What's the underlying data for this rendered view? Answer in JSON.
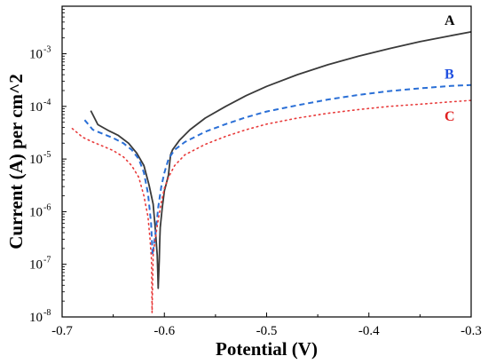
{
  "chart_data": {
    "type": "line",
    "title": "",
    "xlabel": "Potential (V)",
    "ylabel": "Current (A) per cm^2",
    "xlim": [
      -0.7,
      -0.3
    ],
    "ylim": [
      1e-08,
      0.008
    ],
    "yscale": "log",
    "grid": false,
    "x_ticks": [
      "-0.7",
      "-0.6",
      "-0.5",
      "-0.4",
      "-0.3"
    ],
    "y_ticks": [
      {
        "value": 1e-08,
        "base": "10",
        "exp": "-8"
      },
      {
        "value": 1e-07,
        "base": "10",
        "exp": "-7"
      },
      {
        "value": 1e-06,
        "base": "10",
        "exp": "-6"
      },
      {
        "value": 1e-05,
        "base": "10",
        "exp": "-5"
      },
      {
        "value": 0.0001,
        "base": "10",
        "exp": "-4"
      },
      {
        "value": 0.001,
        "base": "10",
        "exp": "-3"
      }
    ],
    "series": [
      {
        "name": "A",
        "color": "#3a3a3a",
        "dash": "solid",
        "label_color": "#000000",
        "x": [
          -0.672,
          -0.665,
          -0.655,
          -0.645,
          -0.635,
          -0.627,
          -0.62,
          -0.615,
          -0.611,
          -0.609,
          -0.607,
          -0.6065,
          -0.606,
          -0.605,
          -0.6045,
          -0.604,
          -0.602,
          -0.6,
          -0.598,
          -0.596,
          -0.594,
          -0.592,
          -0.585,
          -0.575,
          -0.56,
          -0.54,
          -0.52,
          -0.5,
          -0.47,
          -0.44,
          -0.41,
          -0.38,
          -0.35,
          -0.32,
          -0.3
        ],
        "y": [
          8.3e-05,
          4.5e-05,
          3.5e-05,
          2.8e-05,
          2e-05,
          1.3e-05,
          7.5e-06,
          3.2e-06,
          1.4e-06,
          5e-07,
          1.5e-07,
          7e-08,
          3.5e-08,
          1.2e-07,
          3e-07,
          5e-07,
          1.2e-06,
          2.5e-06,
          3.5e-06,
          5e-06,
          1.2e-05,
          1.5e-05,
          2.3e-05,
          3.6e-05,
          6e-05,
          0.0001,
          0.00016,
          0.00024,
          0.0004,
          0.00062,
          0.0009,
          0.00125,
          0.0017,
          0.0022,
          0.0026
        ]
      },
      {
        "name": "B",
        "color": "#2a6fd6",
        "dash": "dashed",
        "label_color": "#1f4fe0",
        "x": [
          -0.678,
          -0.67,
          -0.66,
          -0.65,
          -0.64,
          -0.632,
          -0.625,
          -0.62,
          -0.616,
          -0.613,
          -0.6115,
          -0.61,
          -0.608,
          -0.606,
          -0.603,
          -0.6,
          -0.596,
          -0.59,
          -0.58,
          -0.56,
          -0.54,
          -0.52,
          -0.5,
          -0.47,
          -0.44,
          -0.41,
          -0.38,
          -0.35,
          -0.32,
          -0.3
        ],
        "y": [
          5.5e-05,
          3.6e-05,
          3e-05,
          2.5e-05,
          2e-05,
          1.5e-05,
          1e-05,
          5.5e-06,
          2.2e-06,
          6e-07,
          1.5e-07,
          2.5e-07,
          5e-07,
          1.2e-06,
          3e-06,
          5.5e-06,
          1e-05,
          1.5e-05,
          2.1e-05,
          3.3e-05,
          4.6e-05,
          6.2e-05,
          8e-05,
          0.000105,
          0.000135,
          0.000165,
          0.000195,
          0.00022,
          0.000245,
          0.000255
        ]
      },
      {
        "name": "C",
        "color": "#e83a3a",
        "dash": "dotted",
        "label_color": "#e02020",
        "x": [
          -0.69,
          -0.68,
          -0.67,
          -0.66,
          -0.65,
          -0.64,
          -0.632,
          -0.625,
          -0.62,
          -0.616,
          -0.614,
          -0.6125,
          -0.612,
          -0.611,
          -0.609,
          -0.606,
          -0.603,
          -0.6,
          -0.596,
          -0.59,
          -0.58,
          -0.56,
          -0.54,
          -0.52,
          -0.5,
          -0.47,
          -0.44,
          -0.41,
          -0.38,
          -0.35,
          -0.32,
          -0.3
        ],
        "y": [
          3.8e-05,
          2.6e-05,
          2.1e-05,
          1.75e-05,
          1.45e-05,
          1.1e-05,
          7.5e-06,
          4.5e-06,
          2e-06,
          8e-07,
          3e-07,
          1.2e-07,
          1.2e-08,
          1.5e-07,
          3e-07,
          7e-07,
          1.5e-06,
          2.8e-06,
          4.5e-06,
          7.5e-06,
          1.2e-05,
          1.9e-05,
          2.7e-05,
          3.6e-05,
          4.6e-05,
          6e-05,
          7.4e-05,
          8.7e-05,
          0.0001,
          0.00011,
          0.000122,
          0.00013
        ]
      }
    ]
  }
}
